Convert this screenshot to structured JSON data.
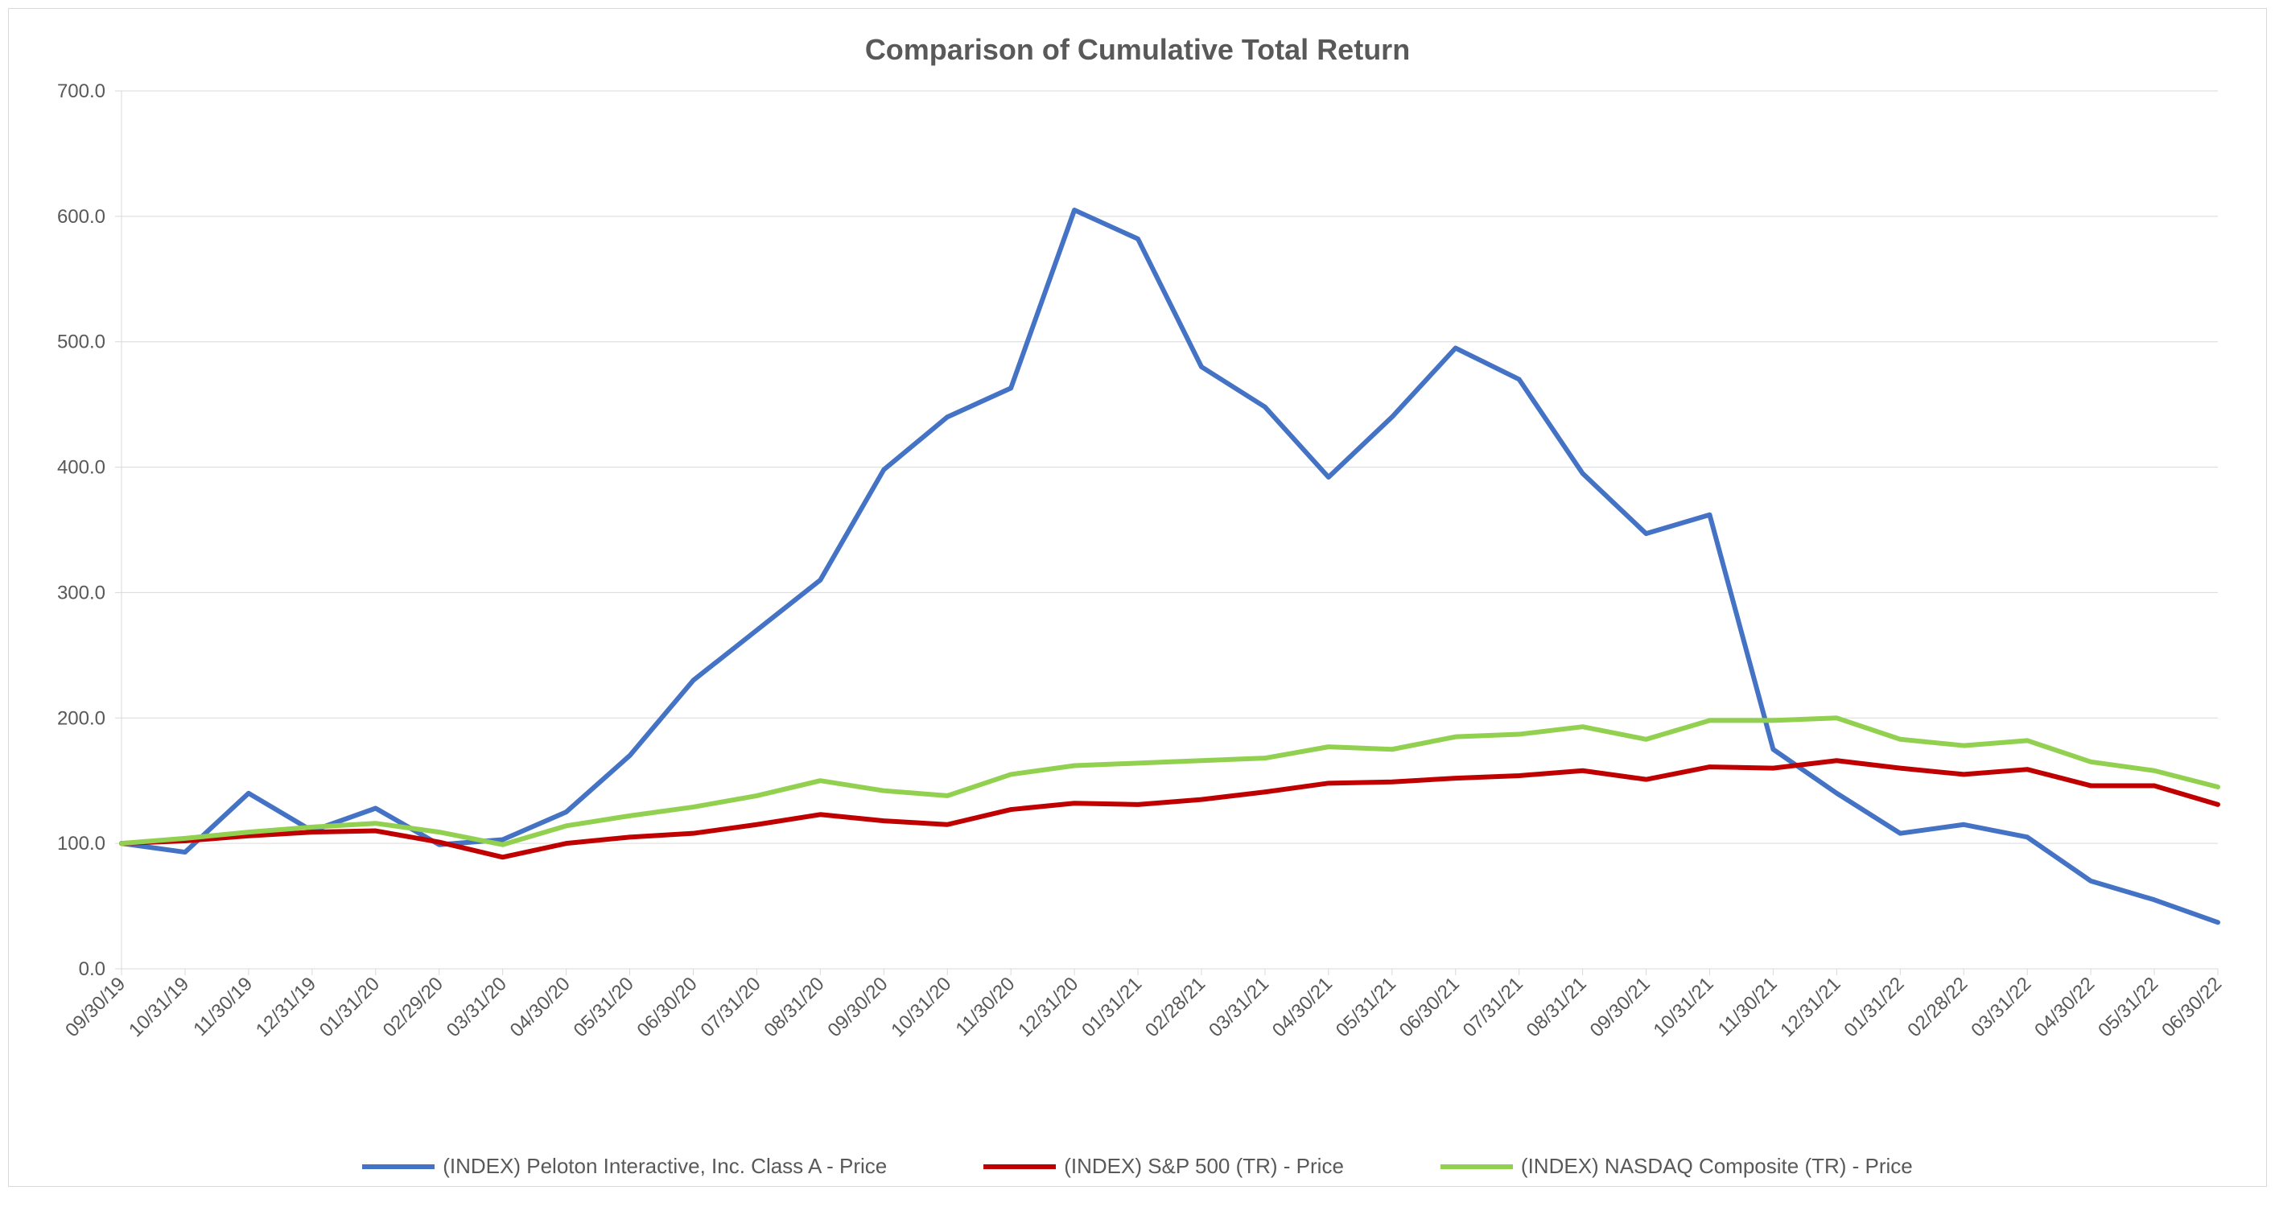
{
  "chart": {
    "type": "line",
    "title": "Comparison of Cumulative Total Return",
    "title_fontsize": 36,
    "title_fontweight": "bold",
    "title_color": "#595959",
    "background_color": "#ffffff",
    "border_color": "#d9d9d9",
    "axis_line_color": "#d9d9d9",
    "grid_color": "#d9d9d9",
    "grid_on": true,
    "tick_color": "#d9d9d9",
    "tick_label_color": "#595959",
    "tick_label_fontsize": 24,
    "x_tick_rotation": -45,
    "ylim": [
      0,
      700
    ],
    "ytick_step": 100,
    "ytick_labels": [
      "0.0",
      "100.0",
      "200.0",
      "300.0",
      "400.0",
      "500.0",
      "600.0",
      "700.0"
    ],
    "categories": [
      "09/30/19",
      "10/31/19",
      "11/30/19",
      "12/31/19",
      "01/31/20",
      "02/29/20",
      "03/31/20",
      "04/30/20",
      "05/31/20",
      "06/30/20",
      "07/31/20",
      "08/31/20",
      "09/30/20",
      "10/31/20",
      "11/30/20",
      "12/31/20",
      "01/31/21",
      "02/28/21",
      "03/31/21",
      "04/30/21",
      "05/31/21",
      "06/30/21",
      "07/31/21",
      "08/31/21",
      "09/30/21",
      "10/31/21",
      "11/30/21",
      "12/31/21",
      "01/31/22",
      "02/28/22",
      "03/31/22",
      "04/30/22",
      "05/31/22",
      "06/30/22"
    ],
    "series": [
      {
        "name": "(INDEX) Peloton Interactive, Inc. Class A - Price",
        "color": "#4472c4",
        "line_width": 6,
        "marker": "none",
        "values": [
          100,
          93,
          140,
          110,
          128,
          99,
          103,
          125,
          170,
          230,
          270,
          310,
          398,
          440,
          463,
          605,
          582,
          480,
          448,
          392,
          440,
          495,
          470,
          395,
          347,
          362,
          175,
          140,
          108,
          115,
          105,
          70,
          55,
          37
        ]
      },
      {
        "name": "(INDEX) S&P 500 (TR) - Price",
        "color": "#c00000",
        "line_width": 6,
        "marker": "none",
        "values": [
          100,
          102,
          106,
          109,
          110,
          101,
          89,
          100,
          105,
          108,
          115,
          123,
          118,
          115,
          127,
          132,
          131,
          135,
          141,
          148,
          149,
          152,
          154,
          158,
          151,
          161,
          160,
          166,
          160,
          155,
          159,
          146,
          146,
          131
        ]
      },
      {
        "name": "(INDEX) NASDAQ Composite (TR) - Price",
        "color": "#92d050",
        "line_width": 6,
        "marker": "none",
        "values": [
          100,
          104,
          109,
          113,
          116,
          109,
          99,
          114,
          122,
          129,
          138,
          150,
          142,
          138,
          155,
          162,
          164,
          166,
          168,
          177,
          175,
          185,
          187,
          193,
          183,
          198,
          198,
          200,
          183,
          178,
          182,
          165,
          158,
          145
        ]
      }
    ],
    "legend": {
      "position": "bottom",
      "fontsize": 26,
      "swatch_width": 90,
      "swatch_line_width": 6
    }
  }
}
